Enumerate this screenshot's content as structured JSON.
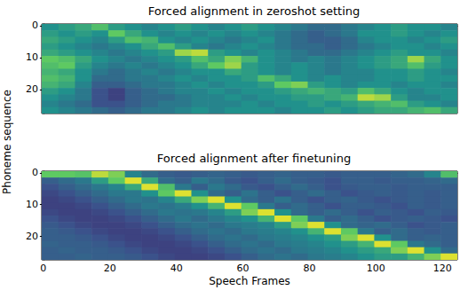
{
  "chart_data": {
    "type": "heatmap_panels",
    "xlabel": "Speech Frames",
    "ylabel": "Phoneme sequence",
    "panels": [
      {
        "type": "heatmap",
        "title": "Forced alignment in zeroshot setting",
        "tick_labels": "y",
        "xlim": [
          -0.5,
          124.5
        ],
        "xticks": [
          0,
          20,
          40,
          60,
          80,
          100,
          120
        ],
        "ylim": [
          -0.5,
          27.5
        ],
        "yticks": [
          0,
          10,
          20
        ],
        "x_edges": [
          -0.5,
          4.5,
          9.5,
          14.5,
          19.5,
          24.5,
          29.5,
          34.5,
          39.5,
          44.5,
          49.5,
          54.5,
          59.5,
          64.5,
          69.5,
          74.5,
          79.5,
          84.5,
          89.5,
          94.5,
          99.5,
          104.5,
          109.5,
          114.5,
          119.5,
          124.5
        ],
        "y_edges": [
          -0.5,
          1.5,
          3.5,
          5.5,
          7.5,
          9.5,
          11.5,
          13.5,
          15.5,
          17.5,
          19.5,
          21.5,
          23.5,
          25.5,
          27.5
        ],
        "color_range": [
          0,
          1
        ],
        "cells": [
          [
            0.5,
            0.55,
            0.6,
            0.7,
            0.55,
            0.5,
            0.45,
            0.5,
            0.55,
            0.5,
            0.45,
            0.5,
            0.55,
            0.5,
            0.45,
            0.4,
            0.35,
            0.35,
            0.4,
            0.45,
            0.5,
            0.55,
            0.5,
            0.5,
            0.45
          ],
          [
            0.55,
            0.5,
            0.55,
            0.5,
            0.75,
            0.6,
            0.5,
            0.45,
            0.5,
            0.45,
            0.5,
            0.45,
            0.5,
            0.45,
            0.4,
            0.35,
            0.3,
            0.35,
            0.4,
            0.5,
            0.5,
            0.55,
            0.5,
            0.45,
            0.5
          ],
          [
            0.6,
            0.55,
            0.5,
            0.45,
            0.55,
            0.7,
            0.65,
            0.5,
            0.45,
            0.5,
            0.45,
            0.4,
            0.45,
            0.5,
            0.4,
            0.35,
            0.3,
            0.3,
            0.35,
            0.45,
            0.5,
            0.5,
            0.45,
            0.5,
            0.55
          ],
          [
            0.55,
            0.5,
            0.45,
            0.4,
            0.45,
            0.5,
            0.6,
            0.7,
            0.55,
            0.45,
            0.4,
            0.45,
            0.5,
            0.45,
            0.4,
            0.35,
            0.35,
            0.3,
            0.35,
            0.4,
            0.45,
            0.5,
            0.5,
            0.45,
            0.5
          ],
          [
            0.6,
            0.55,
            0.5,
            0.45,
            0.4,
            0.45,
            0.5,
            0.55,
            0.85,
            0.9,
            0.55,
            0.5,
            0.45,
            0.5,
            0.45,
            0.4,
            0.35,
            0.35,
            0.4,
            0.45,
            0.5,
            0.55,
            0.5,
            0.5,
            0.45
          ],
          [
            0.75,
            0.7,
            0.6,
            0.5,
            0.45,
            0.4,
            0.45,
            0.5,
            0.55,
            0.7,
            0.6,
            0.8,
            0.65,
            0.5,
            0.45,
            0.4,
            0.45,
            0.4,
            0.45,
            0.5,
            0.55,
            0.6,
            0.85,
            0.6,
            0.5
          ],
          [
            0.7,
            0.75,
            0.55,
            0.45,
            0.4,
            0.45,
            0.4,
            0.45,
            0.5,
            0.6,
            0.75,
            0.85,
            0.55,
            0.5,
            0.45,
            0.5,
            0.45,
            0.4,
            0.45,
            0.5,
            0.55,
            0.6,
            0.7,
            0.55,
            0.5
          ],
          [
            0.65,
            0.6,
            0.5,
            0.4,
            0.35,
            0.4,
            0.45,
            0.4,
            0.45,
            0.5,
            0.5,
            0.6,
            0.55,
            0.5,
            0.45,
            0.5,
            0.45,
            0.4,
            0.45,
            0.45,
            0.5,
            0.5,
            0.55,
            0.5,
            0.45
          ],
          [
            0.7,
            0.65,
            0.5,
            0.35,
            0.35,
            0.4,
            0.4,
            0.45,
            0.5,
            0.45,
            0.5,
            0.5,
            0.55,
            0.7,
            0.6,
            0.5,
            0.45,
            0.5,
            0.45,
            0.45,
            0.5,
            0.5,
            0.55,
            0.5,
            0.5
          ],
          [
            0.65,
            0.6,
            0.45,
            0.3,
            0.3,
            0.35,
            0.4,
            0.4,
            0.45,
            0.5,
            0.45,
            0.5,
            0.5,
            0.55,
            0.75,
            0.8,
            0.55,
            0.5,
            0.45,
            0.5,
            0.5,
            0.45,
            0.5,
            0.5,
            0.45
          ],
          [
            0.55,
            0.5,
            0.4,
            0.25,
            0.2,
            0.3,
            0.35,
            0.4,
            0.45,
            0.45,
            0.5,
            0.45,
            0.5,
            0.5,
            0.55,
            0.6,
            0.65,
            0.6,
            0.55,
            0.7,
            0.6,
            0.5,
            0.45,
            0.5,
            0.5
          ],
          [
            0.5,
            0.45,
            0.4,
            0.25,
            0.2,
            0.3,
            0.35,
            0.35,
            0.4,
            0.45,
            0.45,
            0.5,
            0.45,
            0.5,
            0.5,
            0.55,
            0.55,
            0.6,
            0.65,
            0.9,
            0.85,
            0.55,
            0.45,
            0.45,
            0.5
          ],
          [
            0.45,
            0.4,
            0.35,
            0.25,
            0.25,
            0.3,
            0.35,
            0.4,
            0.4,
            0.45,
            0.45,
            0.45,
            0.5,
            0.45,
            0.5,
            0.5,
            0.55,
            0.5,
            0.55,
            0.6,
            0.65,
            0.7,
            0.55,
            0.5,
            0.45
          ],
          [
            0.5,
            0.45,
            0.4,
            0.35,
            0.3,
            0.35,
            0.4,
            0.4,
            0.45,
            0.5,
            0.45,
            0.5,
            0.5,
            0.5,
            0.45,
            0.5,
            0.5,
            0.55,
            0.5,
            0.55,
            0.6,
            0.6,
            0.65,
            0.7,
            0.6
          ]
        ]
      },
      {
        "type": "heatmap",
        "title": "Forced alignment after finetuning",
        "xlim": [
          -0.5,
          124.5
        ],
        "xticks": [
          0,
          20,
          40,
          60,
          80,
          100,
          120
        ],
        "ylim": [
          -0.5,
          27.5
        ],
        "yticks": [
          0,
          10,
          20
        ],
        "x_edges": [
          -0.5,
          4.5,
          9.5,
          14.5,
          19.5,
          24.5,
          29.5,
          34.5,
          39.5,
          44.5,
          49.5,
          54.5,
          59.5,
          64.5,
          69.5,
          74.5,
          79.5,
          84.5,
          89.5,
          94.5,
          99.5,
          104.5,
          109.5,
          114.5,
          119.5,
          124.5
        ],
        "y_edges": [
          -0.5,
          1.5,
          3.5,
          5.5,
          7.5,
          9.5,
          11.5,
          13.5,
          15.5,
          17.5,
          19.5,
          21.5,
          23.5,
          25.5,
          27.5
        ],
        "color_range": [
          0,
          1
        ],
        "cells": [
          [
            0.75,
            0.75,
            0.72,
            0.9,
            0.8,
            0.45,
            0.35,
            0.3,
            0.28,
            0.3,
            0.32,
            0.3,
            0.28,
            0.3,
            0.32,
            0.3,
            0.3,
            0.28,
            0.3,
            0.3,
            0.3,
            0.32,
            0.35,
            0.45,
            0.7
          ],
          [
            0.3,
            0.35,
            0.4,
            0.55,
            0.75,
            0.95,
            0.6,
            0.35,
            0.3,
            0.4,
            0.35,
            0.28,
            0.25,
            0.3,
            0.35,
            0.3,
            0.28,
            0.25,
            0.3,
            0.3,
            0.28,
            0.3,
            0.3,
            0.32,
            0.35
          ],
          [
            0.25,
            0.3,
            0.35,
            0.4,
            0.45,
            0.6,
            0.95,
            0.7,
            0.4,
            0.3,
            0.4,
            0.35,
            0.28,
            0.25,
            0.3,
            0.35,
            0.3,
            0.25,
            0.28,
            0.3,
            0.3,
            0.28,
            0.3,
            0.3,
            0.3
          ],
          [
            0.22,
            0.25,
            0.3,
            0.35,
            0.4,
            0.4,
            0.5,
            0.75,
            0.95,
            0.5,
            0.35,
            0.3,
            0.38,
            0.3,
            0.25,
            0.3,
            0.35,
            0.3,
            0.25,
            0.28,
            0.3,
            0.28,
            0.3,
            0.28,
            0.3
          ],
          [
            0.2,
            0.22,
            0.25,
            0.3,
            0.35,
            0.4,
            0.38,
            0.45,
            0.6,
            0.8,
            0.95,
            0.5,
            0.35,
            0.3,
            0.38,
            0.3,
            0.25,
            0.3,
            0.32,
            0.28,
            0.25,
            0.28,
            0.3,
            0.28,
            0.3
          ],
          [
            0.2,
            0.2,
            0.22,
            0.25,
            0.3,
            0.35,
            0.4,
            0.38,
            0.42,
            0.5,
            0.65,
            0.95,
            0.75,
            0.4,
            0.3,
            0.35,
            0.3,
            0.25,
            0.3,
            0.3,
            0.28,
            0.25,
            0.3,
            0.28,
            0.3
          ],
          [
            0.22,
            0.2,
            0.2,
            0.22,
            0.25,
            0.3,
            0.35,
            0.4,
            0.38,
            0.4,
            0.45,
            0.55,
            0.8,
            0.95,
            0.5,
            0.35,
            0.3,
            0.35,
            0.3,
            0.25,
            0.3,
            0.28,
            0.25,
            0.3,
            0.28
          ],
          [
            0.25,
            0.22,
            0.2,
            0.2,
            0.22,
            0.25,
            0.3,
            0.35,
            0.4,
            0.35,
            0.4,
            0.45,
            0.5,
            0.65,
            0.95,
            0.75,
            0.4,
            0.3,
            0.35,
            0.3,
            0.25,
            0.28,
            0.3,
            0.28,
            0.25
          ],
          [
            0.28,
            0.25,
            0.22,
            0.2,
            0.2,
            0.22,
            0.25,
            0.3,
            0.35,
            0.38,
            0.35,
            0.4,
            0.42,
            0.45,
            0.55,
            0.8,
            0.95,
            0.5,
            0.35,
            0.32,
            0.35,
            0.3,
            0.25,
            0.28,
            0.3
          ],
          [
            0.3,
            0.28,
            0.25,
            0.22,
            0.2,
            0.2,
            0.22,
            0.25,
            0.3,
            0.35,
            0.38,
            0.35,
            0.4,
            0.42,
            0.45,
            0.5,
            0.65,
            0.95,
            0.75,
            0.4,
            0.3,
            0.35,
            0.3,
            0.28,
            0.3
          ],
          [
            0.3,
            0.3,
            0.28,
            0.25,
            0.22,
            0.2,
            0.2,
            0.22,
            0.25,
            0.3,
            0.35,
            0.38,
            0.35,
            0.4,
            0.42,
            0.45,
            0.5,
            0.55,
            0.8,
            0.95,
            0.5,
            0.35,
            0.3,
            0.32,
            0.3
          ],
          [
            0.32,
            0.3,
            0.3,
            0.28,
            0.25,
            0.22,
            0.2,
            0.2,
            0.22,
            0.25,
            0.3,
            0.35,
            0.38,
            0.35,
            0.4,
            0.42,
            0.45,
            0.5,
            0.55,
            0.65,
            0.95,
            0.75,
            0.4,
            0.35,
            0.3
          ],
          [
            0.3,
            0.32,
            0.3,
            0.3,
            0.28,
            0.25,
            0.22,
            0.2,
            0.2,
            0.22,
            0.25,
            0.3,
            0.35,
            0.38,
            0.35,
            0.4,
            0.42,
            0.45,
            0.5,
            0.55,
            0.6,
            0.8,
            0.95,
            0.5,
            0.35
          ],
          [
            0.3,
            0.3,
            0.32,
            0.3,
            0.3,
            0.28,
            0.25,
            0.22,
            0.2,
            0.2,
            0.22,
            0.25,
            0.3,
            0.35,
            0.38,
            0.35,
            0.4,
            0.42,
            0.45,
            0.5,
            0.55,
            0.55,
            0.65,
            0.8,
            0.95
          ]
        ]
      }
    ]
  }
}
